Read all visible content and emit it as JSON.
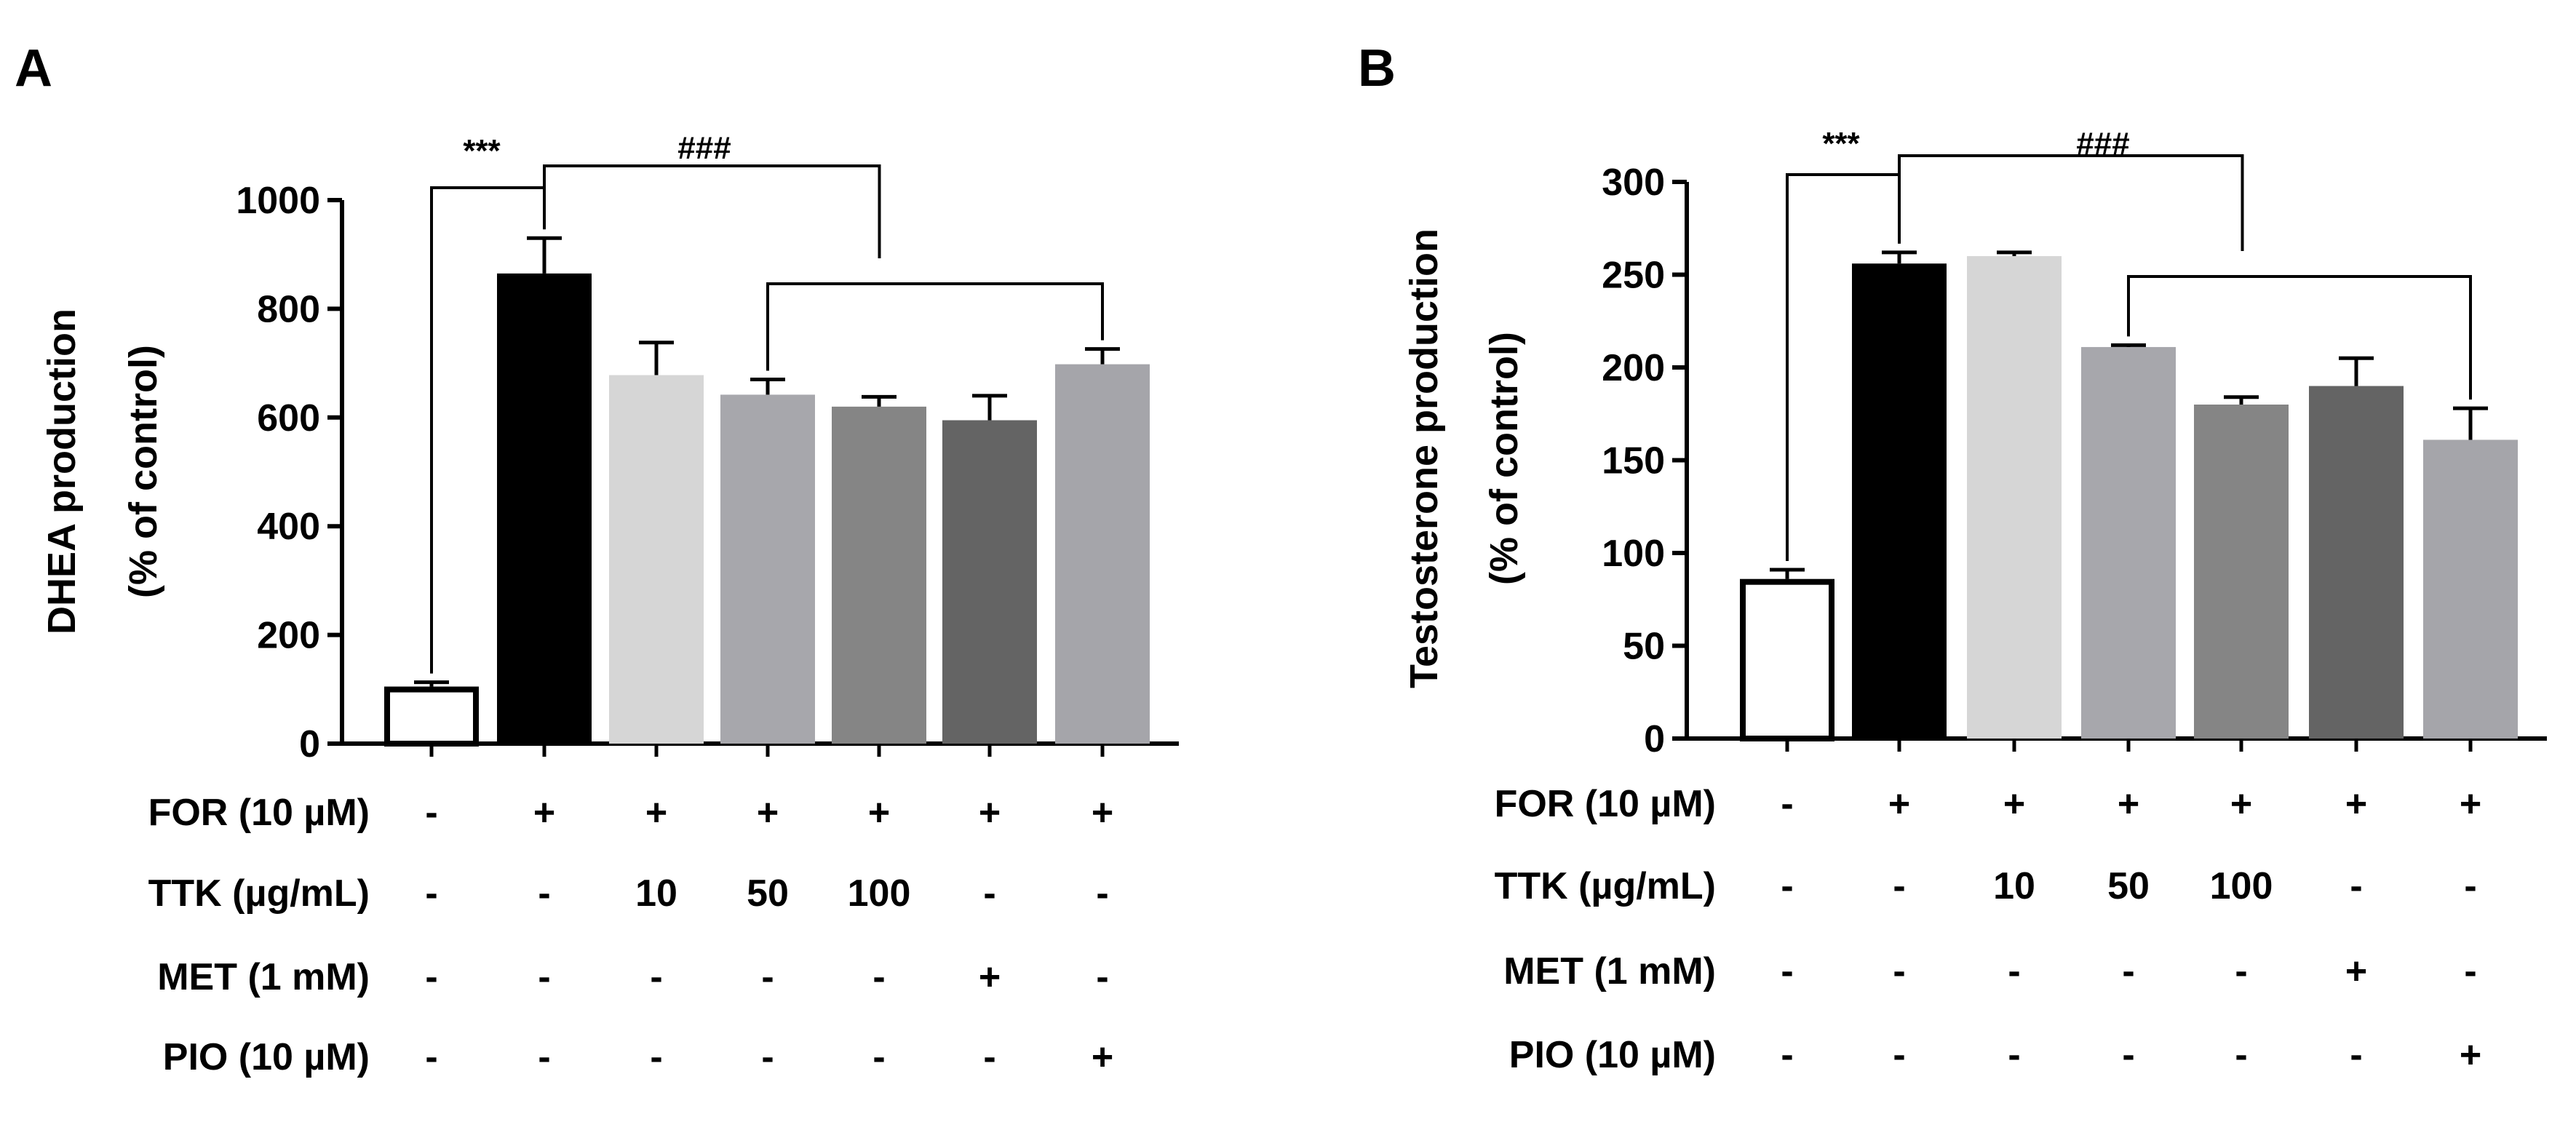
{
  "figure": {
    "colors": [
      "#ffffff",
      "#000000",
      "#d6d6d6",
      "#a7a7ac",
      "#858585",
      "#646464",
      "#a5a5aa"
    ]
  },
  "treatments": {
    "rows": [
      {
        "label": "FOR  (10 µM)",
        "values": [
          "-",
          "+",
          "+",
          "+",
          "+",
          "+",
          "+"
        ]
      },
      {
        "label": "TTK  (µg/mL)",
        "values": [
          "-",
          "-",
          "10",
          "50",
          "100",
          "-",
          "-"
        ]
      },
      {
        "label": "MET  (1 mM)",
        "values": [
          "-",
          "-",
          "-",
          "-",
          "-",
          "+",
          "-"
        ]
      },
      {
        "label": "PIO  (10 µM)",
        "values": [
          "-",
          "-",
          "-",
          "-",
          "-",
          "-",
          "+"
        ]
      }
    ]
  },
  "chart_data": [
    {
      "type": "bar",
      "panel": "A",
      "ylabel_line1": "DHEA production",
      "ylabel_line2": "(% of control)",
      "ylim": [
        0,
        1000
      ],
      "yticks": [
        0,
        200,
        400,
        600,
        800,
        1000
      ],
      "values": [
        105,
        865,
        678,
        642,
        620,
        595,
        698
      ],
      "errors": [
        8,
        65,
        60,
        28,
        18,
        45,
        28
      ],
      "annotations": {
        "sig_1": "***",
        "sig_2": "###"
      }
    },
    {
      "type": "bar",
      "panel": "B",
      "ylabel_line1": "Testosterone production",
      "ylabel_line2": "(% of control)",
      "ylim": [
        0,
        300
      ],
      "yticks": [
        0,
        50,
        100,
        150,
        200,
        250,
        300
      ],
      "values": [
        86,
        256,
        260,
        211,
        180,
        190,
        161
      ],
      "errors": [
        5,
        6,
        2,
        1,
        4,
        15,
        17
      ],
      "annotations": {
        "sig_1": "***",
        "sig_2": "###"
      }
    }
  ]
}
